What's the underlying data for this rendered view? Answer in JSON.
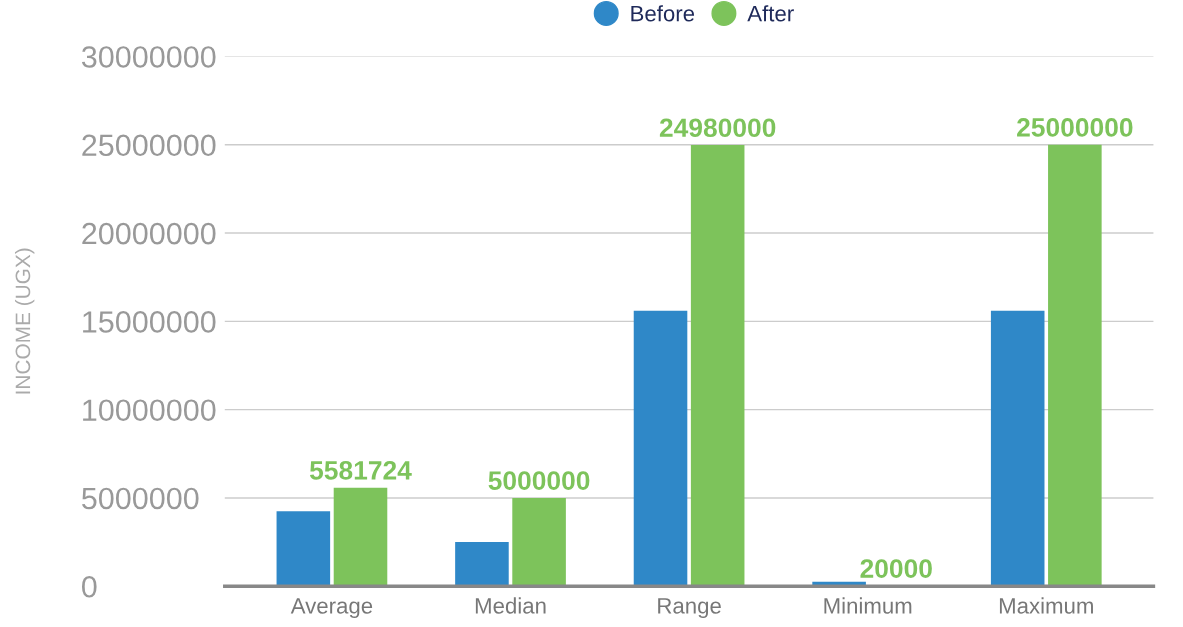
{
  "chart_data": {
    "type": "bar",
    "ylabel": "INCOME (UGX)",
    "categories": [
      "Average",
      "Median",
      "Range",
      "Minimum",
      "Maximum"
    ],
    "series": [
      {
        "name": "Before",
        "color": "#2f88c8",
        "values": [
          4240000,
          2500000,
          15600000,
          250000,
          15600000
        ]
      },
      {
        "name": "After",
        "color": "#7dc35b",
        "values": [
          5581724,
          5000000,
          24980000,
          20000,
          25000000
        ],
        "value_labels": [
          "5581724",
          "5000000",
          "24980000",
          "20000",
          "25000000"
        ]
      }
    ],
    "ylim": [
      0,
      30000000
    ],
    "yticks": [
      0,
      5000000,
      10000000,
      15000000,
      20000000,
      25000000,
      30000000
    ],
    "grid": "y",
    "legend": "top"
  }
}
